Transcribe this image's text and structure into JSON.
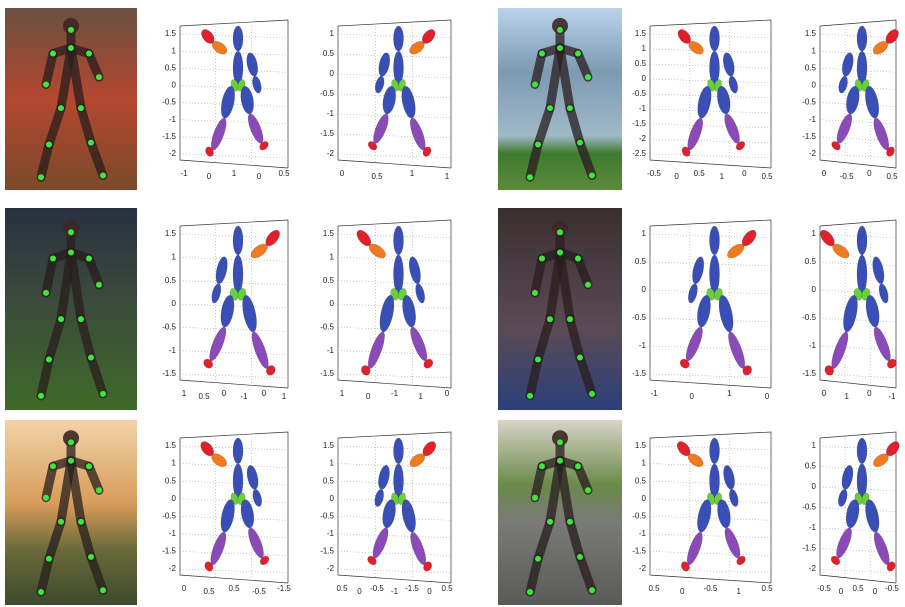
{
  "rows": [
    {
      "plots": [
        {
          "left_ticks": [
            "1.5",
            "1",
            "0.5",
            "0",
            "-0.5",
            "-1",
            "-1.5",
            "-2"
          ],
          "bottom_ticks": [
            "-1",
            "0",
            "1",
            "0",
            "0.5"
          ]
        },
        {
          "left_ticks": [
            "1",
            "0.5",
            "0",
            "-0.5",
            "-1",
            "-1.5",
            "-2"
          ],
          "bottom_ticks": [
            "0",
            "0.5",
            "1",
            "1"
          ]
        },
        {
          "left_ticks": [
            "1.5",
            "1",
            "0.5",
            "0",
            "-0.5",
            "-1",
            "-1.5",
            "-2",
            "-2.5"
          ],
          "bottom_ticks": [
            "-0.5",
            "0",
            "0.5",
            "1",
            "0",
            "0.5"
          ]
        },
        {
          "left_ticks": [
            "1.5",
            "1",
            "0.5",
            "0",
            "-0.5",
            "-1",
            "-1.5",
            "-2"
          ],
          "bottom_ticks": [
            "0",
            "-0.5",
            "0",
            "0.5"
          ]
        }
      ]
    },
    {
      "plots": [
        {
          "left_ticks": [
            "1.5",
            "1",
            "0.5",
            "0",
            "-0.5",
            "-1",
            "-1.5"
          ],
          "bottom_ticks": [
            "1",
            "0.5",
            "0",
            "-1",
            "0",
            "1"
          ]
        },
        {
          "left_ticks": [
            "1.5",
            "1",
            "0.5",
            "0",
            "-0.5",
            "-1",
            "-1.5"
          ],
          "bottom_ticks": [
            "1",
            "0",
            "-1",
            "1",
            "0"
          ]
        },
        {
          "left_ticks": [
            "1",
            "0.5",
            "0",
            "-0.5",
            "-1",
            "-1.5"
          ],
          "bottom_ticks": [
            "-1",
            "0",
            "1",
            "0"
          ]
        },
        {
          "left_ticks": [
            "1",
            "0.5",
            "0",
            "-0.5",
            "-1",
            "-1.5"
          ],
          "bottom_ticks": [
            "0",
            "1",
            "0",
            "-1"
          ]
        }
      ]
    },
    {
      "plots": [
        {
          "left_ticks": [
            "1.5",
            "1",
            "0.5",
            "0",
            "-0.5",
            "-1",
            "-1.5",
            "-2"
          ],
          "bottom_ticks": [
            "0",
            "0.5",
            "0.5",
            "-0.5",
            "-1.5"
          ]
        },
        {
          "left_ticks": [
            "1.5",
            "1",
            "0.5",
            "0",
            "-0.5",
            "-1",
            "-1.5",
            "-2"
          ],
          "bottom_ticks": [
            "0.5",
            "0",
            "-0.5",
            "-1",
            "-1.5",
            "0",
            "0.5"
          ]
        },
        {
          "left_ticks": [
            "1.5",
            "1",
            "0.5",
            "0",
            "-0.5",
            "-1",
            "-1.5",
            "-2"
          ],
          "bottom_ticks": [
            "0.5",
            "0",
            "-0.5",
            "1",
            "0.5"
          ]
        },
        {
          "left_ticks": [
            "1",
            "0.5",
            "0",
            "-0.5",
            "-1",
            "-1.5",
            "-2"
          ],
          "bottom_ticks": [
            "-0.5",
            "0",
            "0.5",
            "0",
            "-0.5"
          ]
        }
      ]
    }
  ]
}
